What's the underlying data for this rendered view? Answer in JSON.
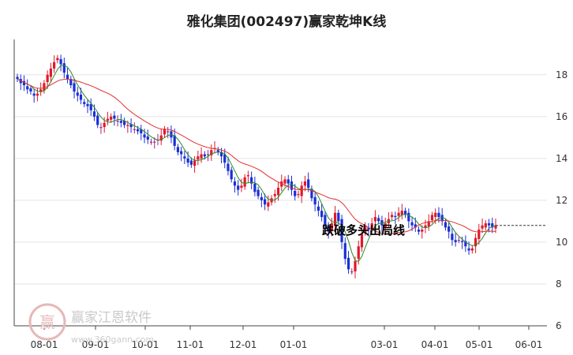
{
  "chart_data": {
    "type": "candlestick",
    "title": "雅化集团(002497)赢家乾坤K线",
    "ylim": [
      6,
      19.5
    ],
    "y_ticks": [
      6,
      8,
      10,
      12,
      14,
      16,
      18
    ],
    "x_ticks": [
      "08-01",
      "09-01",
      "10-01",
      "11-01",
      "12-01",
      "01-01",
      "03-01",
      "04-01",
      "05-01",
      "06-01"
    ],
    "grid": "horizontal",
    "annotation": "跌破多头出局线",
    "reference_line": 10.8,
    "colors": {
      "up": "#e0192a",
      "down": "#1a2fd6",
      "neutral": "#9a2a8a",
      "ma_short": "#2a8a2a",
      "ma_long": "#e03030"
    },
    "close_series": [
      17.8,
      17.6,
      17.5,
      17.3,
      17.2,
      17.0,
      17.1,
      17.3,
      17.6,
      18.0,
      18.3,
      18.6,
      18.8,
      18.5,
      18.1,
      17.8,
      17.5,
      17.2,
      17.0,
      16.8,
      16.6,
      16.5,
      16.3,
      16.0,
      15.6,
      15.5,
      15.7,
      15.9,
      16.0,
      15.9,
      15.8,
      15.7,
      15.6,
      15.6,
      15.5,
      15.4,
      15.3,
      15.2,
      15.0,
      14.9,
      14.8,
      14.8,
      14.9,
      15.1,
      15.4,
      15.3,
      15.0,
      14.6,
      14.3,
      14.2,
      14.0,
      13.8,
      13.7,
      13.9,
      14.1,
      14.2,
      14.1,
      14.2,
      14.4,
      14.5,
      14.3,
      14.1,
      13.8,
      13.4,
      13.0,
      12.7,
      12.5,
      12.7,
      13.1,
      13.2,
      12.8,
      12.4,
      12.2,
      12.0,
      11.8,
      11.9,
      12.1,
      12.3,
      12.6,
      12.9,
      13.0,
      12.8,
      12.5,
      12.2,
      12.3,
      12.7,
      12.9,
      12.6,
      12.1,
      11.8,
      11.5,
      11.2,
      10.8,
      10.5,
      10.9,
      11.4,
      11.0,
      10.0,
      9.2,
      8.7,
      8.6,
      9.1,
      9.8,
      10.4,
      10.8,
      10.6,
      10.9,
      11.2,
      11.0,
      10.8,
      10.9,
      11.1,
      11.3,
      11.2,
      11.4,
      11.5,
      11.3,
      11.0,
      10.8,
      10.7,
      10.5,
      10.6,
      10.8,
      11.0,
      11.3,
      11.4,
      11.2,
      11.0,
      10.7,
      10.5,
      10.1,
      10.0,
      10.1,
      10.0,
      9.8,
      9.6,
      9.7,
      10.2,
      10.6,
      10.8,
      10.9,
      10.8,
      10.7,
      10.8
    ]
  },
  "watermark": {
    "brand": "赢家江恩软件",
    "url": "www.360gann.com",
    "logo_text": "赢"
  }
}
